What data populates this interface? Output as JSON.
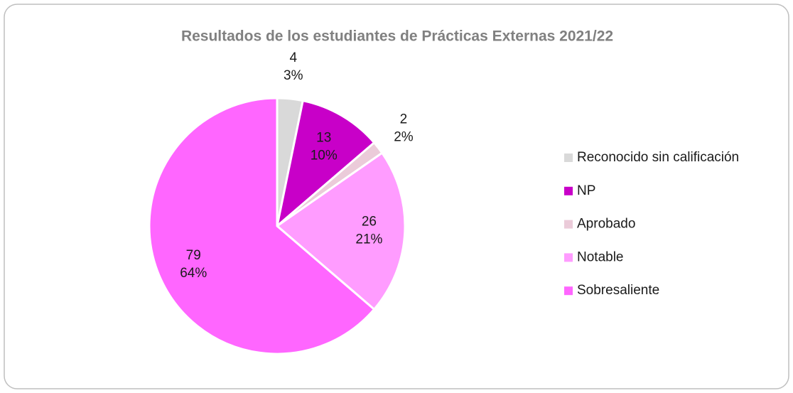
{
  "chart_data": {
    "type": "pie",
    "title": "Resultados de los estudiantes de Prácticas Externas 2021/22",
    "categories": [
      "Reconocido sin calificación",
      "NP",
      "Aprobado",
      "Notable",
      "Sobresaliente"
    ],
    "values": [
      4,
      13,
      2,
      26,
      79
    ],
    "percent_labels": [
      "3%",
      "10%",
      "2%",
      "21%",
      "64%"
    ],
    "colors": [
      "#d9d9d9",
      "#c800c8",
      "#ebcbd9",
      "#ff9cff",
      "#ff66ff"
    ],
    "legend": "right"
  }
}
